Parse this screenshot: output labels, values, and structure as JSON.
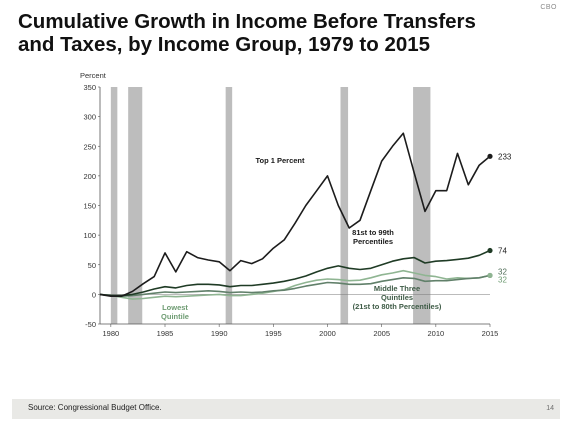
{
  "brand": "CBO",
  "title_lines": [
    "Cumulative Growth in Income Before Transfers",
    "and Taxes, by Income Group, 1979 to 2015"
  ],
  "footer": {
    "source": "Source: Congressional Budget Office.",
    "page_number": "14"
  },
  "chart_data": {
    "type": "line",
    "title": "Cumulative Growth in Income Before Transfers and Taxes, by Income Group, 1979 to 2015",
    "ylabel": "Percent",
    "xlabel": "",
    "xlim": [
      1979,
      2015
    ],
    "ylim": [
      -50,
      350
    ],
    "xticks": [
      1980,
      1985,
      1990,
      1995,
      2000,
      2005,
      2010,
      2015
    ],
    "yticks": [
      -50,
      0,
      50,
      100,
      150,
      200,
      250,
      300,
      350
    ],
    "grid": false,
    "legend": "none (series labeled directly on chart)",
    "recession_shading": [
      [
        1980.0,
        1980.6
      ],
      [
        1981.6,
        1982.9
      ],
      [
        1990.6,
        1991.2
      ],
      [
        2001.2,
        2001.9
      ],
      [
        2007.9,
        2009.5
      ]
    ],
    "x": [
      1979,
      1980,
      1981,
      1982,
      1983,
      1984,
      1985,
      1986,
      1987,
      1988,
      1989,
      1990,
      1991,
      1992,
      1993,
      1994,
      1995,
      1996,
      1997,
      1998,
      1999,
      2000,
      2001,
      2002,
      2003,
      2004,
      2005,
      2006,
      2007,
      2008,
      2009,
      2010,
      2011,
      2012,
      2013,
      2014,
      2015
    ],
    "series": [
      {
        "name": "Top 1 Percent",
        "color": "#1c1c1c",
        "end_label": "233",
        "values": [
          0,
          -3,
          -3,
          5,
          18,
          30,
          70,
          38,
          72,
          62,
          58,
          55,
          40,
          57,
          52,
          60,
          78,
          92,
          120,
          150,
          175,
          200,
          150,
          112,
          125,
          175,
          225,
          250,
          272,
          205,
          140,
          175,
          175,
          238,
          185,
          218,
          233
        ]
      },
      {
        "name": "81st to 99th Percentiles",
        "color": "#1f3b25",
        "end_label": "74",
        "values": [
          0,
          -2,
          -2,
          0,
          4,
          9,
          13,
          11,
          15,
          17,
          17,
          16,
          13,
          15,
          15,
          17,
          19,
          22,
          26,
          31,
          38,
          44,
          48,
          44,
          42,
          44,
          50,
          56,
          60,
          62,
          53,
          56,
          57,
          59,
          61,
          66,
          74
        ]
      },
      {
        "name": "Middle Three Quintiles (21st to 80th Percentiles)",
        "color": "#61806a",
        "end_label": "32",
        "values": [
          0,
          -2,
          -3,
          -2,
          0,
          2,
          4,
          3,
          4,
          5,
          6,
          5,
          3,
          4,
          3,
          4,
          6,
          7,
          10,
          14,
          17,
          20,
          19,
          17,
          17,
          18,
          22,
          25,
          28,
          27,
          22,
          23,
          23,
          25,
          27,
          28,
          32
        ]
      },
      {
        "name": "Lowest Quintile",
        "color": "#8fb592",
        "end_label": "32",
        "values": [
          0,
          -2,
          -5,
          -8,
          -7,
          -5,
          -3,
          -4,
          -3,
          -2,
          -1,
          0,
          -2,
          -2,
          0,
          2,
          5,
          8,
          15,
          20,
          24,
          26,
          25,
          23,
          24,
          28,
          33,
          36,
          40,
          36,
          32,
          30,
          26,
          28,
          27,
          28,
          32
        ]
      }
    ],
    "annotations": [
      "Top 1 Percent",
      "81st to 99th Percentiles",
      "Middle Three Quintiles (21st to 80th Percentiles)",
      "Lowest Quintile"
    ]
  },
  "annotation_lines": {
    "top1": [
      "Top 1 Percent"
    ],
    "p81": [
      "81st to 99th",
      "Percentiles"
    ],
    "mid": [
      "Middle Three",
      "Quintiles",
      "(21st to 80th Percentiles)"
    ],
    "low": [
      "Lowest",
      "Quintile"
    ]
  }
}
